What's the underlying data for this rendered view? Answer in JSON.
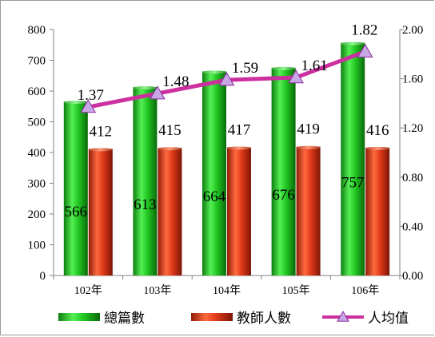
{
  "chart_data": {
    "type": "bar",
    "categories": [
      "102年",
      "103年",
      "104年",
      "105年",
      "106年"
    ],
    "series": [
      {
        "name": "總篇數",
        "type": "bar",
        "axis": "left",
        "values": [
          566,
          613,
          664,
          676,
          757
        ],
        "color": "#22c322"
      },
      {
        "name": "教師人數",
        "type": "bar",
        "axis": "left",
        "values": [
          412,
          415,
          417,
          419,
          416
        ],
        "color": "#d9361a"
      },
      {
        "name": "人均值",
        "type": "line",
        "axis": "right",
        "values": [
          1.37,
          1.48,
          1.59,
          1.61,
          1.82
        ],
        "labels": [
          "1.37",
          "1.48",
          "1.59",
          "1.61",
          "1.82"
        ],
        "color": "#cc2f9e",
        "marker_color": "#c9a6e6"
      }
    ],
    "y_left": {
      "min": 0,
      "max": 800,
      "ticks": [
        "0",
        "100",
        "200",
        "300",
        "400",
        "500",
        "600",
        "700",
        "800"
      ]
    },
    "y_right": {
      "min": 0,
      "max": 2.0,
      "ticks": [
        "0.00",
        "0.40",
        "0.80",
        "1.20",
        "1.60",
        "2.00"
      ]
    },
    "title": "",
    "xlabel": "",
    "ylabel": "",
    "grid": false,
    "legend_position": "bottom"
  }
}
